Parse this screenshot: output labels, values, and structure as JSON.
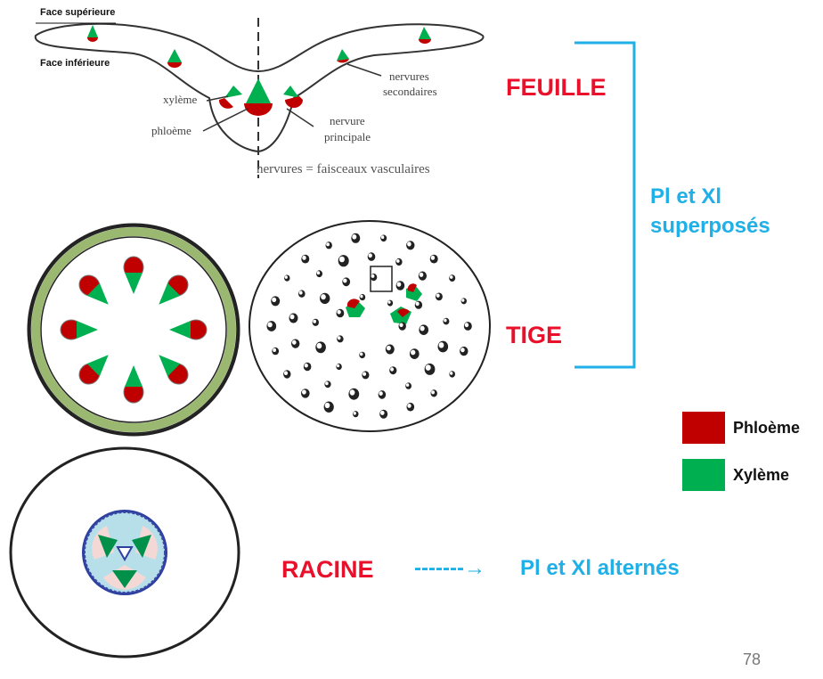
{
  "leaf": {
    "face_sup": "Face supérieure",
    "face_inf": "Face inférieure",
    "xyleme": "xylème",
    "phloeme": "phloème",
    "nervures_secondaires_1": "nervures",
    "nervures_secondaires_2": "secondaires",
    "nervure_principale_1": "nervure",
    "nervure_principale_2": "principale",
    "caption": "nervures = faisceaux vasculaires"
  },
  "labels": {
    "feuille": "FEUILLE",
    "tige": "TIGE",
    "racine": "RACINE",
    "superposes_1": "Pl et Xl",
    "superposes_2": "superposés",
    "arrow": "-------→",
    "alternes": "Pl et Xl alternés"
  },
  "legend": {
    "phloeme": "Phloème",
    "xyleme": "Xylème"
  },
  "colors": {
    "phloeme": "#c00000",
    "xyleme": "#00b050",
    "red_text": "#e8102a",
    "blue_text": "#1fb0e8"
  },
  "page_number": "78"
}
